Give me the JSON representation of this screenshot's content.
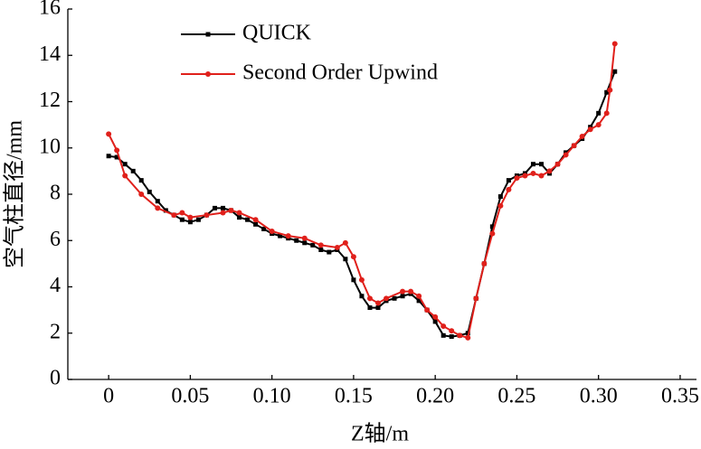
{
  "chart_data": {
    "type": "line",
    "x_label": "Z轴/m",
    "y_label": "空气柱直径/mm",
    "xlim": [
      -0.025,
      0.36
    ],
    "ylim": [
      0,
      16
    ],
    "xticks": [
      0,
      0.05,
      {
        "value": 0.1,
        "label": "0.10"
      },
      0.15,
      {
        "value": 0.2,
        "label": "0.20"
      },
      0.25,
      {
        "value": 0.3,
        "label": "0.30"
      },
      0.35
    ],
    "yticks": [
      0,
      2,
      4,
      6,
      8,
      10,
      12,
      14,
      16
    ],
    "grid": false,
    "legend": "upper-left",
    "series": [
      {
        "name": "QUICK",
        "color": "#000000",
        "marker": "square",
        "x": [
          0,
          0.005,
          0.01,
          0.015,
          0.02,
          0.025,
          0.03,
          0.035,
          0.04,
          0.045,
          0.05,
          0.055,
          0.06,
          0.065,
          0.07,
          0.075,
          0.08,
          0.085,
          0.09,
          0.095,
          0.1,
          0.105,
          0.11,
          0.115,
          0.12,
          0.125,
          0.13,
          0.135,
          0.14,
          0.145,
          0.15,
          0.155,
          0.16,
          0.165,
          0.17,
          0.175,
          0.18,
          0.185,
          0.19,
          0.195,
          0.2,
          0.205,
          0.21,
          0.215,
          0.22,
          0.225,
          0.23,
          0.235,
          0.24,
          0.245,
          0.25,
          0.255,
          0.26,
          0.265,
          0.27,
          0.275,
          0.28,
          0.285,
          0.29,
          0.295,
          0.3,
          0.305,
          0.31
        ],
        "values": [
          9.65,
          9.6,
          9.3,
          9.0,
          8.6,
          8.1,
          7.7,
          7.3,
          7.1,
          6.9,
          6.8,
          6.9,
          7.1,
          7.4,
          7.4,
          7.3,
          7.0,
          6.9,
          6.7,
          6.5,
          6.3,
          6.2,
          6.1,
          6.0,
          5.9,
          5.8,
          5.6,
          5.5,
          5.6,
          5.2,
          4.3,
          3.6,
          3.1,
          3.1,
          3.4,
          3.5,
          3.6,
          3.7,
          3.4,
          3.0,
          2.5,
          1.9,
          1.85,
          1.9,
          2.0,
          3.5,
          5.0,
          6.6,
          7.9,
          8.6,
          8.8,
          8.9,
          9.3,
          9.3,
          8.9,
          9.3,
          9.8,
          10.1,
          10.4,
          10.9,
          11.5,
          12.4,
          13.3
        ]
      },
      {
        "name": "Second Order Upwind",
        "color": "#e0201b",
        "marker": "circle",
        "x": [
          0,
          0.005,
          0.01,
          0.02,
          0.03,
          0.04,
          0.045,
          0.05,
          0.06,
          0.07,
          0.075,
          0.08,
          0.09,
          0.1,
          0.11,
          0.12,
          0.13,
          0.14,
          0.145,
          0.15,
          0.155,
          0.16,
          0.165,
          0.17,
          0.18,
          0.185,
          0.19,
          0.195,
          0.2,
          0.205,
          0.21,
          0.215,
          0.22,
          0.225,
          0.23,
          0.235,
          0.24,
          0.245,
          0.25,
          0.255,
          0.26,
          0.265,
          0.27,
          0.275,
          0.28,
          0.285,
          0.29,
          0.295,
          0.3,
          0.305,
          0.307,
          0.31
        ],
        "values": [
          10.6,
          9.9,
          8.8,
          8.0,
          7.4,
          7.1,
          7.2,
          7.0,
          7.1,
          7.2,
          7.3,
          7.2,
          6.9,
          6.4,
          6.2,
          6.1,
          5.8,
          5.7,
          5.9,
          5.3,
          4.3,
          3.5,
          3.3,
          3.5,
          3.8,
          3.8,
          3.6,
          3.0,
          2.7,
          2.3,
          2.1,
          1.9,
          1.8,
          3.5,
          5.0,
          6.3,
          7.5,
          8.2,
          8.7,
          8.8,
          8.9,
          8.8,
          9.0,
          9.3,
          9.7,
          10.1,
          10.5,
          10.8,
          11.0,
          11.5,
          12.5,
          14.5
        ]
      }
    ]
  }
}
